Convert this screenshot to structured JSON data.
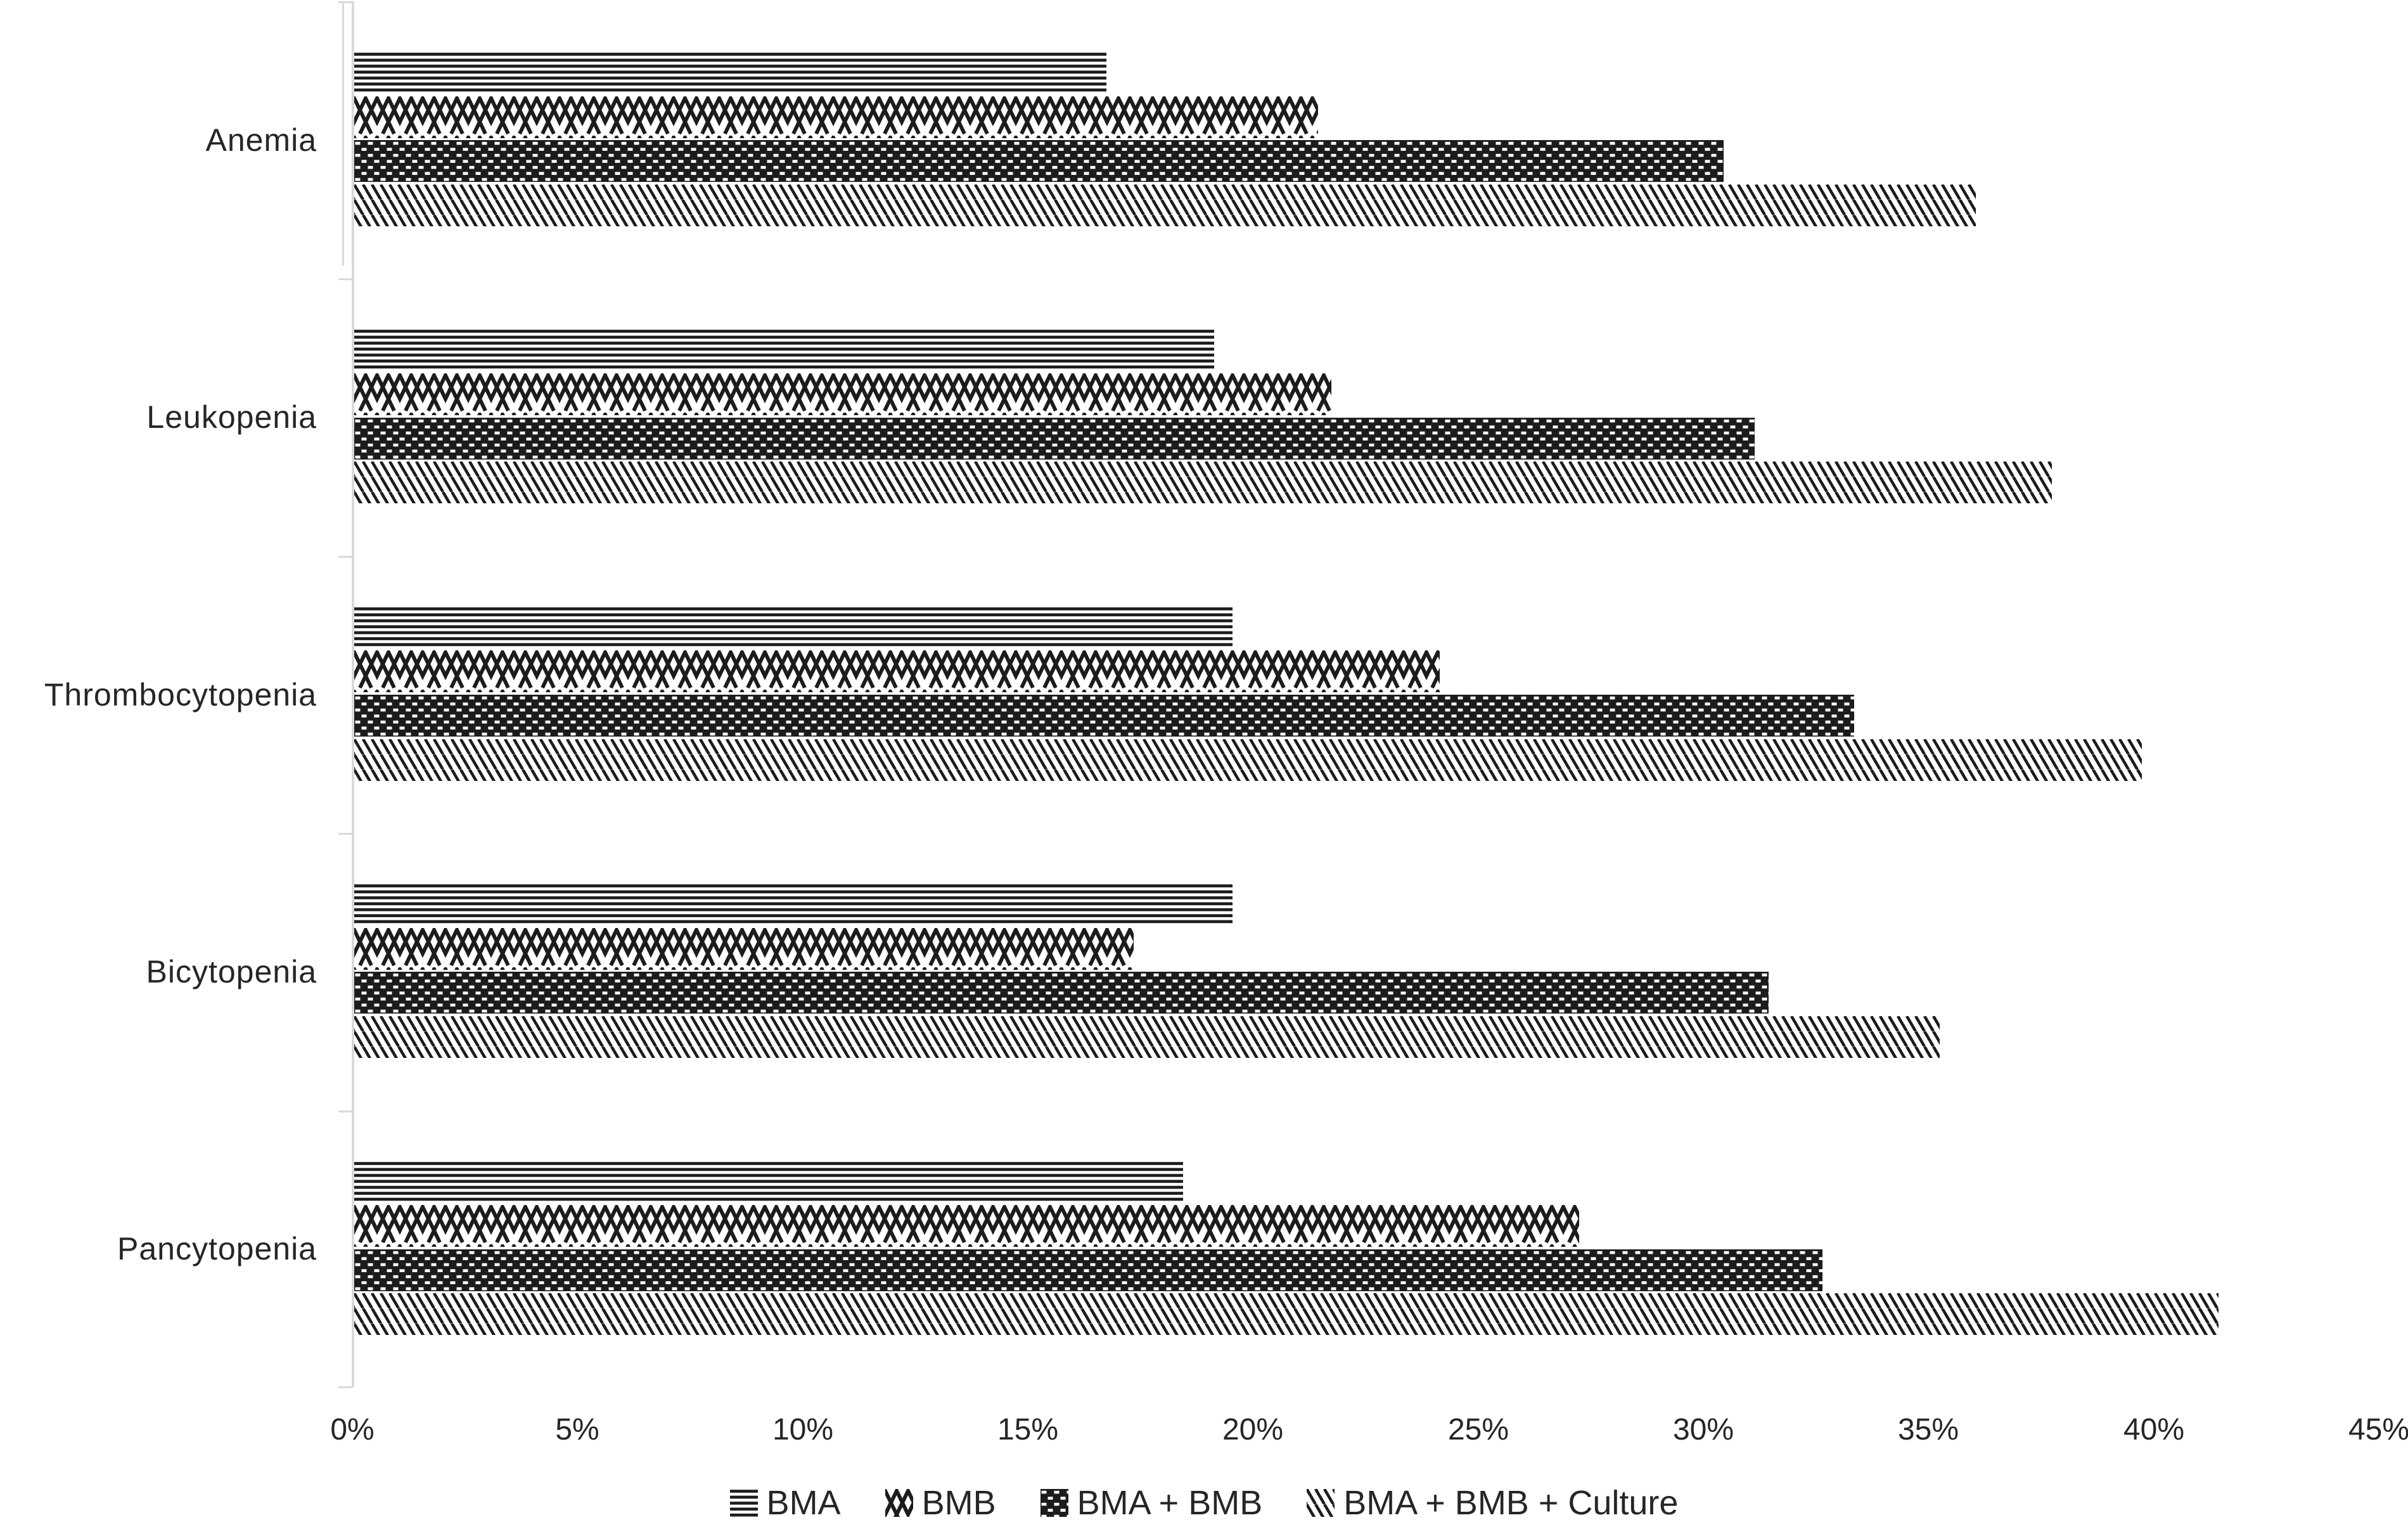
{
  "chart_data": {
    "type": "bar",
    "orientation": "horizontal",
    "title": "",
    "xlabel": "",
    "ylabel": "",
    "xlim": [
      0,
      45
    ],
    "grid": false,
    "legend_position": "bottom-center",
    "categories": [
      "Anemia",
      "Leukopenia",
      "Thrombocytopenia",
      "Bicytopenia",
      "Pancytopenia"
    ],
    "series": [
      {
        "name": "BMA",
        "pattern": "horizontal-stripes",
        "values": [
          16.7,
          19.1,
          19.5,
          19.5,
          18.4
        ]
      },
      {
        "name": "BMB",
        "pattern": "zigzag-weave",
        "values": [
          21.4,
          21.7,
          24.1,
          17.3,
          27.2
        ]
      },
      {
        "name": "BMA + BMB",
        "pattern": "basket-weave",
        "values": [
          30.4,
          31.1,
          33.3,
          31.4,
          32.6
        ]
      },
      {
        "name": "BMA + BMB + Culture",
        "pattern": "thin-diagonal-stripes",
        "values": [
          36.0,
          37.7,
          39.7,
          35.2,
          41.4
        ]
      }
    ],
    "x_ticks": [
      "0%",
      "5%",
      "10%",
      "15%",
      "20%",
      "25%",
      "30%",
      "35%",
      "40%",
      "45%"
    ],
    "colors": {
      "pattern_ink": "#1c1c1c",
      "axis_line": "#d9d9d9",
      "text": "#262626",
      "background": "#ffffff"
    }
  }
}
